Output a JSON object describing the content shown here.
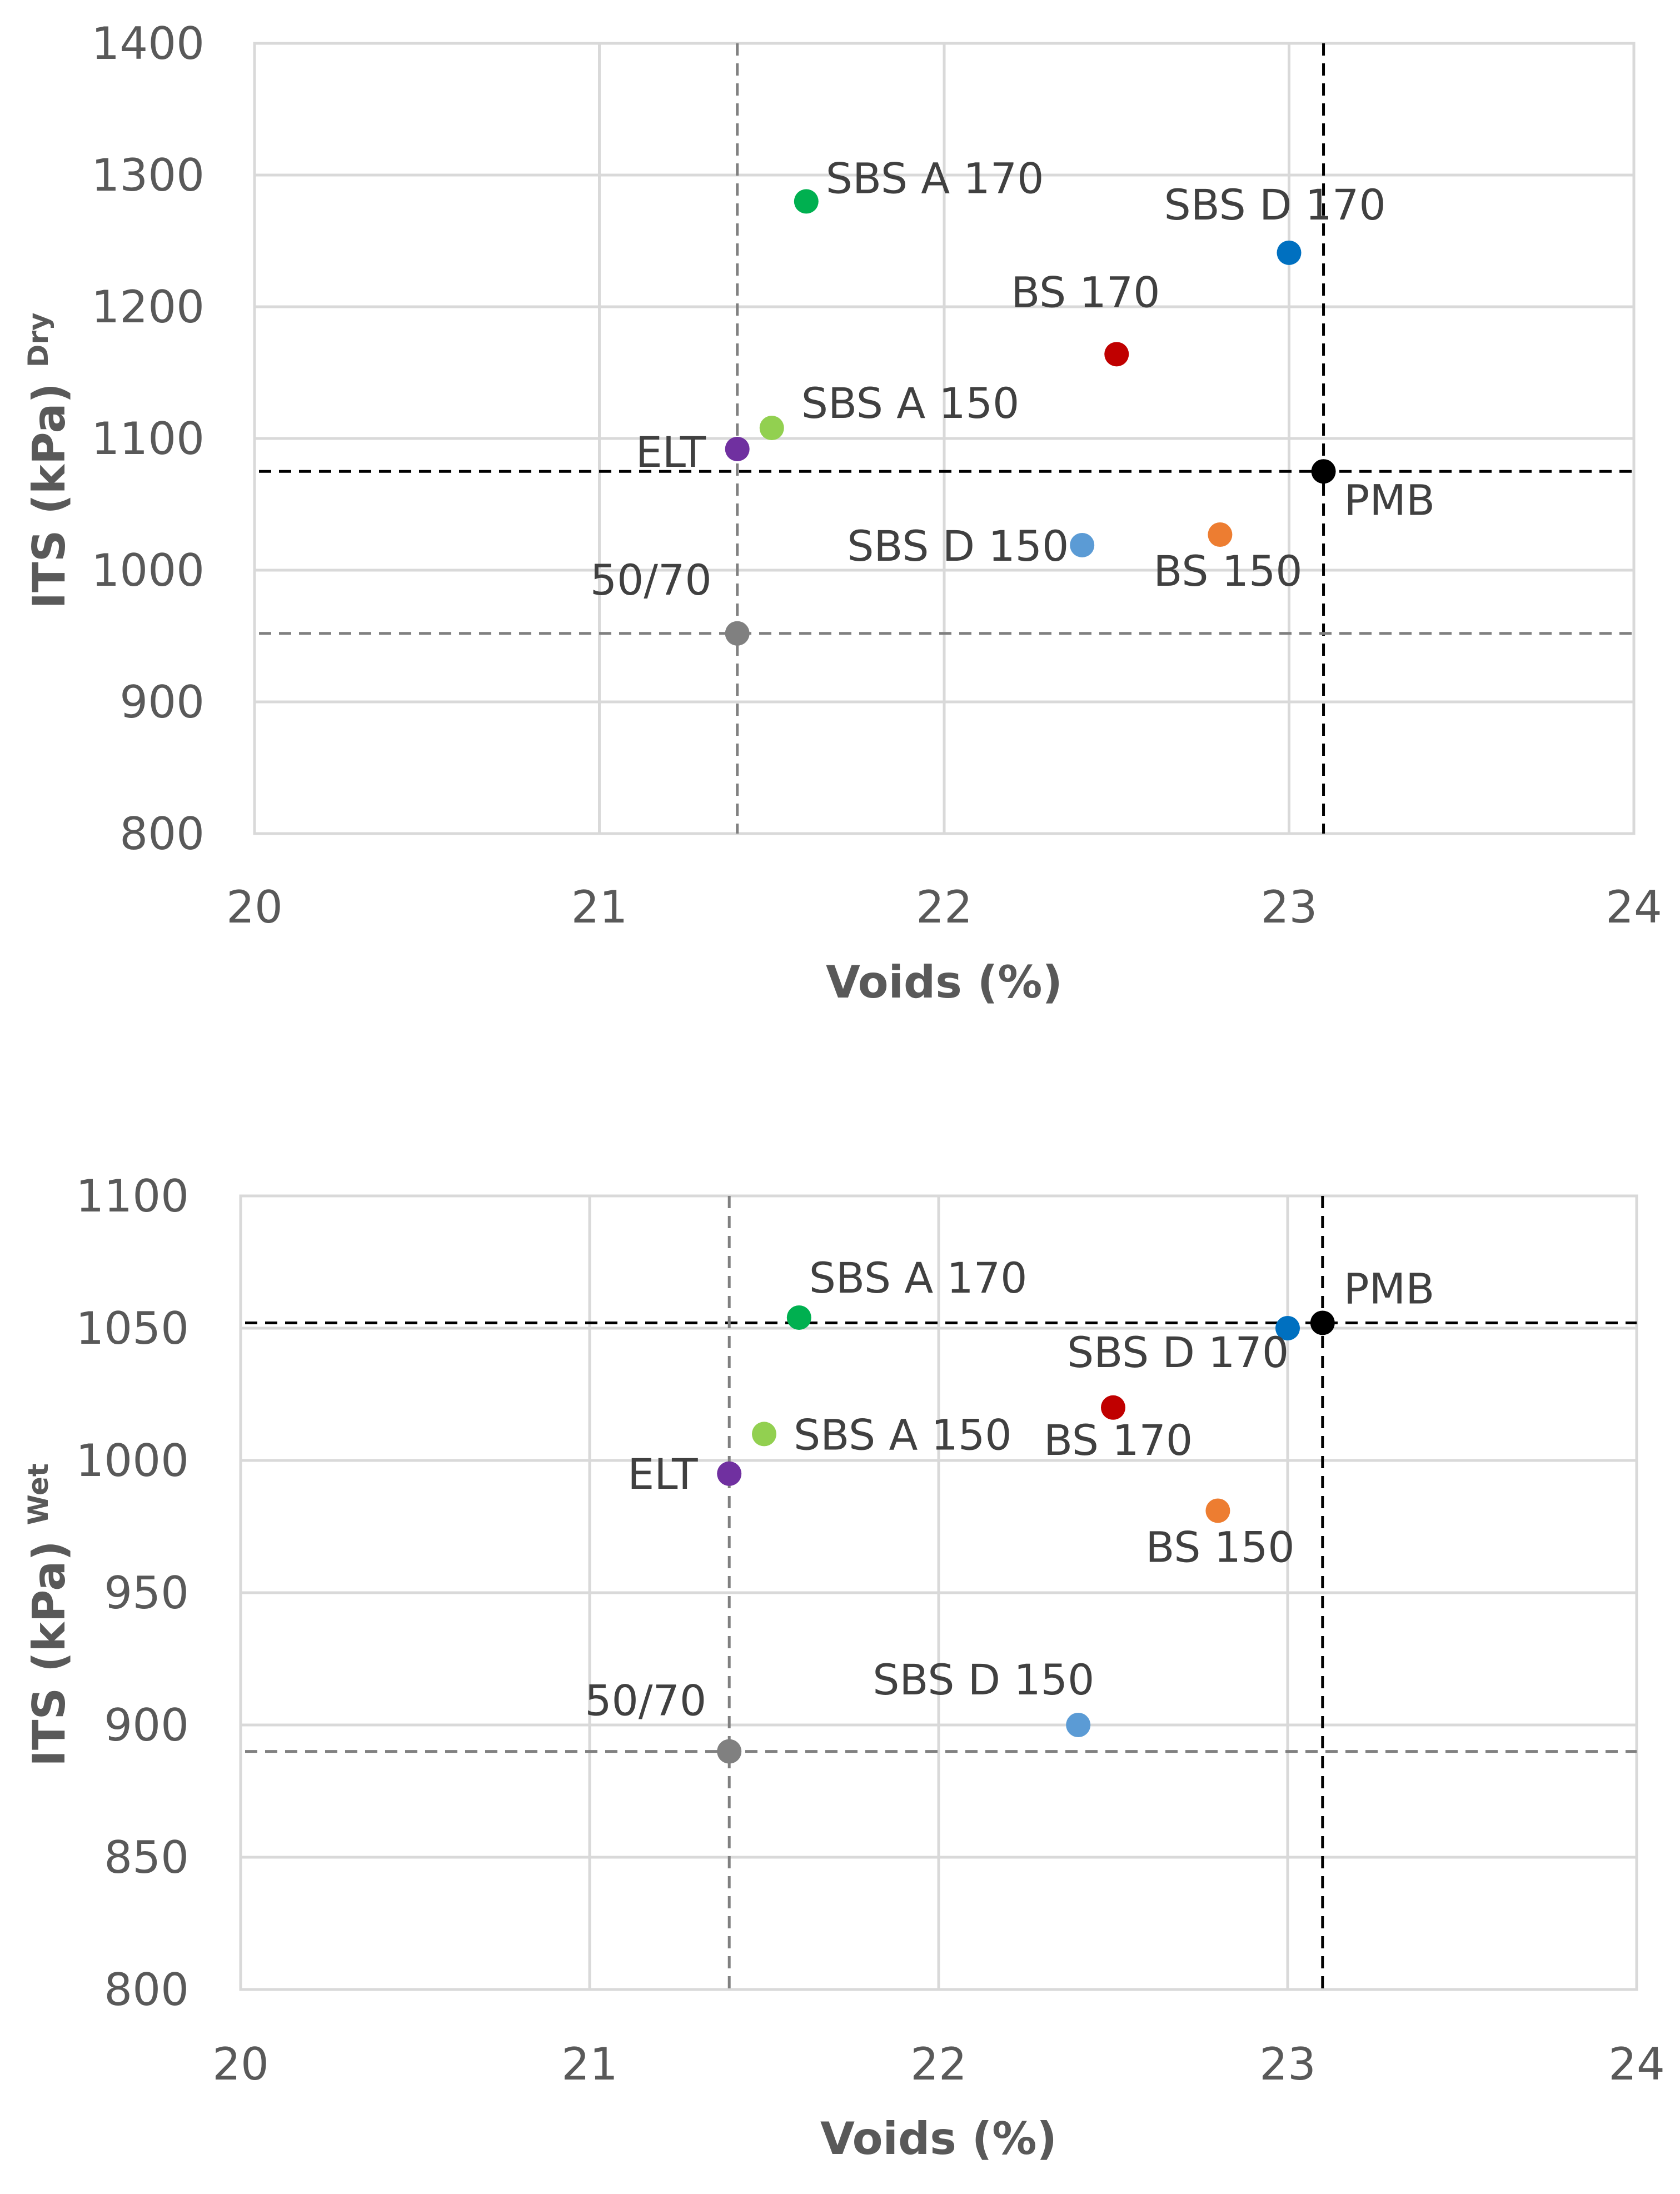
{
  "chart_data": [
    {
      "type": "scatter",
      "id": "dry",
      "xlabel": "Voids (%)",
      "ylabel": "ITS (kPa)",
      "ylabel_superscript": "Dry",
      "xlim": [
        20,
        24
      ],
      "ylim": [
        800,
        1400
      ],
      "x_ticks": [
        20,
        21,
        22,
        23,
        24
      ],
      "y_ticks": [
        800,
        900,
        1000,
        1100,
        1200,
        1300,
        1400
      ],
      "grid": true,
      "series": [
        {
          "name": "SBS A 170",
          "x": 21.6,
          "y": 1280,
          "color": "#00b050"
        },
        {
          "name": "SBS D 170",
          "x": 23.0,
          "y": 1241,
          "color": "#0070c0"
        },
        {
          "name": "BS 170",
          "x": 22.5,
          "y": 1164,
          "color": "#c00000"
        },
        {
          "name": "SBS A 150",
          "x": 21.5,
          "y": 1108,
          "color": "#92d050"
        },
        {
          "name": "ELT",
          "x": 21.4,
          "y": 1092,
          "color": "#7030a0"
        },
        {
          "name": "PMB",
          "x": 23.1,
          "y": 1075,
          "color": "#000000"
        },
        {
          "name": "SBS D 150",
          "x": 22.4,
          "y": 1019,
          "color": "#5b9bd5"
        },
        {
          "name": "BS 150",
          "x": 22.8,
          "y": 1027,
          "color": "#ed7d31"
        },
        {
          "name": "50/70",
          "x": 21.4,
          "y": 952,
          "color": "#808080"
        }
      ],
      "reference_lines": [
        {
          "orientation": "horizontal",
          "value": 1075,
          "color": "#000000",
          "refers_to": "PMB"
        },
        {
          "orientation": "vertical",
          "value": 23.1,
          "color": "#000000",
          "refers_to": "PMB"
        },
        {
          "orientation": "horizontal",
          "value": 952,
          "color": "#808080",
          "refers_to": "50/70"
        },
        {
          "orientation": "vertical",
          "value": 21.4,
          "color": "#808080",
          "refers_to": "50/70"
        }
      ]
    },
    {
      "type": "scatter",
      "id": "wet",
      "xlabel": "Voids (%)",
      "ylabel": "ITS (kPa)",
      "ylabel_superscript": "Wet",
      "xlim": [
        20,
        24
      ],
      "ylim": [
        800,
        1100
      ],
      "x_ticks": [
        20,
        21,
        22,
        23,
        24
      ],
      "y_ticks": [
        800,
        850,
        900,
        950,
        1000,
        1050,
        1100
      ],
      "grid": true,
      "series": [
        {
          "name": "SBS A 170",
          "x": 21.6,
          "y": 1054,
          "color": "#00b050"
        },
        {
          "name": "PMB",
          "x": 23.1,
          "y": 1052,
          "color": "#000000"
        },
        {
          "name": "SBS D 170",
          "x": 23.0,
          "y": 1050,
          "color": "#0070c0"
        },
        {
          "name": "BS 170",
          "x": 22.5,
          "y": 1020,
          "color": "#c00000"
        },
        {
          "name": "SBS A 150",
          "x": 21.5,
          "y": 1010,
          "color": "#92d050"
        },
        {
          "name": "ELT",
          "x": 21.4,
          "y": 995,
          "color": "#7030a0"
        },
        {
          "name": "BS 150",
          "x": 22.8,
          "y": 981,
          "color": "#ed7d31"
        },
        {
          "name": "SBS D 150",
          "x": 22.4,
          "y": 900,
          "color": "#5b9bd5"
        },
        {
          "name": "50/70",
          "x": 21.4,
          "y": 890,
          "color": "#808080"
        }
      ],
      "reference_lines": [
        {
          "orientation": "horizontal",
          "value": 1052,
          "color": "#000000",
          "refers_to": "PMB"
        },
        {
          "orientation": "vertical",
          "value": 23.1,
          "color": "#000000",
          "refers_to": "PMB"
        },
        {
          "orientation": "horizontal",
          "value": 890,
          "color": "#808080",
          "refers_to": "50/70"
        },
        {
          "orientation": "vertical",
          "value": 21.4,
          "color": "#808080",
          "refers_to": "50/70"
        }
      ]
    }
  ]
}
